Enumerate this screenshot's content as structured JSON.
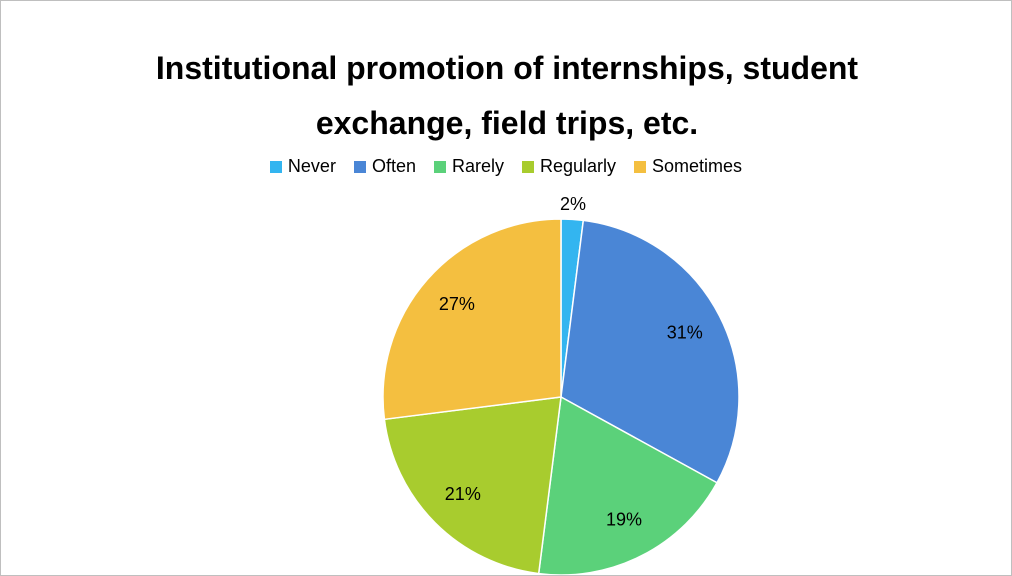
{
  "chart_data": {
    "type": "pie",
    "title": "Institutional promotion of internships, student exchange, field trips, etc.",
    "categories": [
      "Never",
      "Often",
      "Rarely",
      "Regularly",
      "Sometimes"
    ],
    "values": [
      2,
      31,
      19,
      21,
      27
    ],
    "value_labels": [
      "2%",
      "31%",
      "19%",
      "21%",
      "27%"
    ],
    "colors": [
      "#33b5f0",
      "#4a86d6",
      "#5bd17a",
      "#a8cc2e",
      "#f4bf40"
    ],
    "legend": "top"
  }
}
